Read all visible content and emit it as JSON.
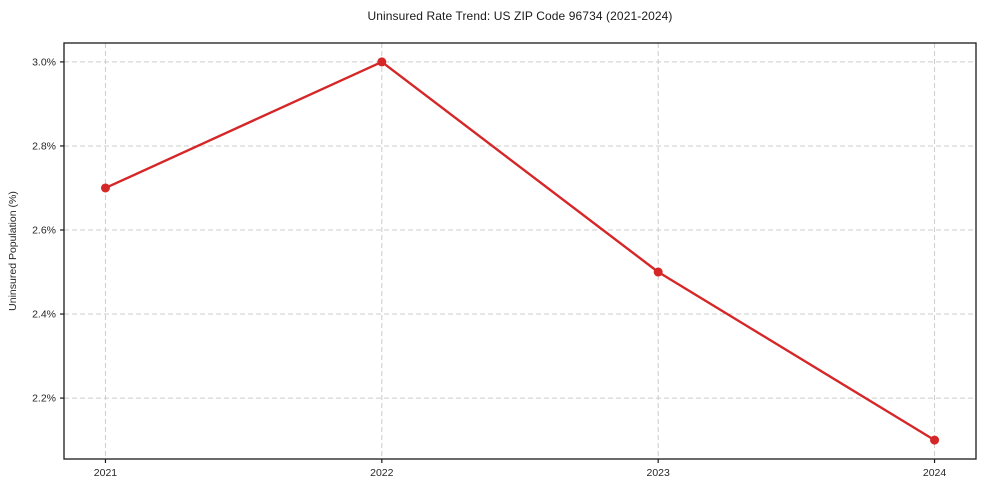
{
  "chart_data": {
    "type": "line",
    "title": "Uninsured Rate Trend: US ZIP Code 96734 (2021-2024)",
    "xlabel": "",
    "ylabel": "Uninsured Population (%)",
    "x": [
      2021,
      2022,
      2023,
      2024
    ],
    "x_tick_labels": [
      "2021",
      "2022",
      "2023",
      "2024"
    ],
    "series": [
      {
        "name": "Uninsured Population (%)",
        "values": [
          2.7,
          3.0,
          2.5,
          2.1
        ]
      }
    ],
    "y_ticks": [
      2.2,
      2.4,
      2.6,
      2.8,
      3.0
    ],
    "y_tick_labels": [
      "2.2%",
      "2.4%",
      "2.6%",
      "2.8%",
      "3.0%"
    ],
    "xlim": [
      2020.85,
      2024.15
    ],
    "ylim": [
      2.055,
      3.045
    ],
    "grid": true,
    "grid_style": "dashed",
    "legend": "none",
    "marker": "circle",
    "colors": {
      "line": "#d62728",
      "marker": "#d62728",
      "grid": "#cccccc",
      "spine": "#1a1a1a",
      "text": "#262626",
      "background": "#ffffff"
    }
  }
}
